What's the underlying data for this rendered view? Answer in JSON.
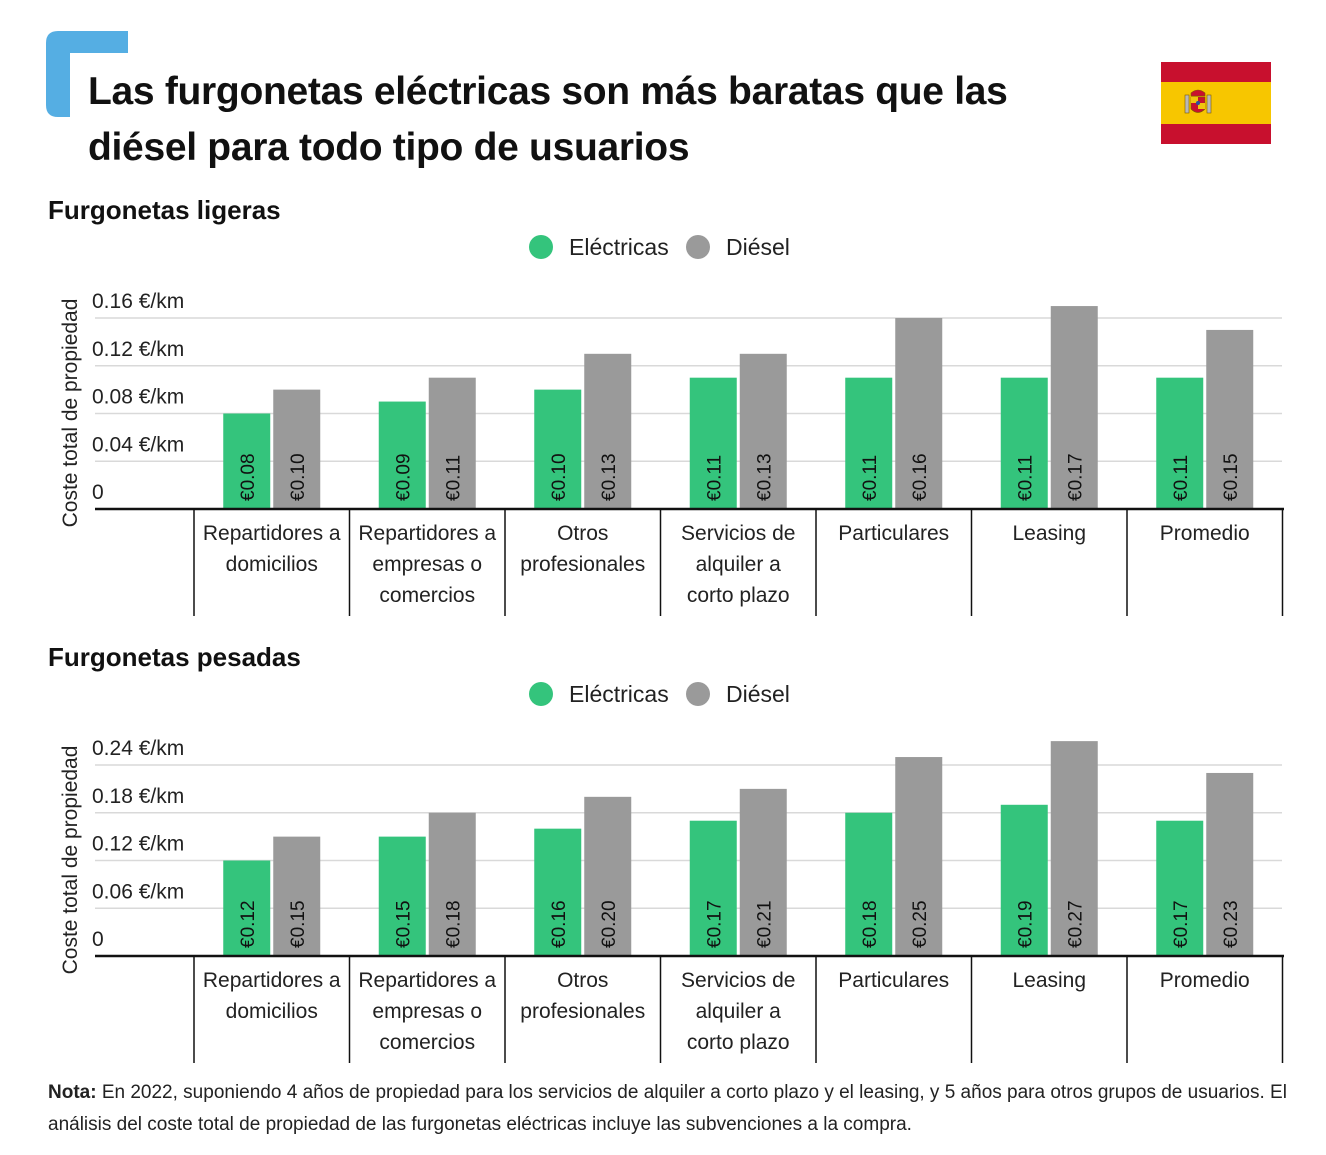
{
  "title": "Las furgonetas eléctricas son más baratas que las diésel para todo tipo de usuarios",
  "flag_icon": "spain-flag-icon",
  "colors": {
    "accent": "#55aee3",
    "electric": "#34c47c",
    "diesel": "#9a9a9a",
    "grid": "#d9d9d9",
    "axis": "#111111"
  },
  "chart_data": [
    {
      "type": "bar",
      "title": "Furgonetas ligeras",
      "ylabel": "Coste total de propiedad",
      "xlabel": "",
      "categories": [
        "Repartidores a domicilios",
        "Repartidores a empresas o comercios",
        "Otros profesionales",
        "Servicios de alquiler a corto plazo",
        "Particulares",
        "Leasing",
        "Promedio"
      ],
      "category_lines": [
        [
          "Repartidores a",
          "domicilios"
        ],
        [
          "Repartidores a",
          "empresas o",
          "comercios"
        ],
        [
          "Otros",
          "profesionales"
        ],
        [
          "Servicios de",
          "alquiler a",
          "corto plazo"
        ],
        [
          "Particulares"
        ],
        [
          "Leasing"
        ],
        [
          "Promedio"
        ]
      ],
      "series": [
        {
          "name": "Eléctricas",
          "values": [
            0.08,
            0.09,
            0.1,
            0.11,
            0.11,
            0.11,
            0.11
          ],
          "labels": [
            "€0.08",
            "€0.09",
            "€0.10",
            "€0.11",
            "€0.11",
            "€0.11",
            "€0.11"
          ]
        },
        {
          "name": "Diésel",
          "values": [
            0.1,
            0.11,
            0.13,
            0.13,
            0.16,
            0.17,
            0.15
          ],
          "labels": [
            "€0.10",
            "€0.11",
            "€0.13",
            "€0.13",
            "€0.16",
            "€0.17",
            "€0.15"
          ]
        }
      ],
      "yticks": [
        0,
        0.04,
        0.08,
        0.12,
        0.16
      ],
      "ytick_labels": [
        "0",
        "0.04 €/km",
        "0.08 €/km",
        "0.12 €/km",
        "0.16 €/km"
      ],
      "ylim": [
        0,
        0.16
      ],
      "grid": true,
      "legend": "top-center"
    },
    {
      "type": "bar",
      "title": "Furgonetas pesadas",
      "ylabel": "Coste total de propiedad",
      "xlabel": "",
      "categories": [
        "Repartidores a domicilios",
        "Repartidores a empresas o comercios",
        "Otros profesionales",
        "Servicios de alquiler a corto plazo",
        "Particulares",
        "Leasing",
        "Promedio"
      ],
      "category_lines": [
        [
          "Repartidores a",
          "domicilios"
        ],
        [
          "Repartidores a",
          "empresas o",
          "comercios"
        ],
        [
          "Otros",
          "profesionales"
        ],
        [
          "Servicios de",
          "alquiler a",
          "corto plazo"
        ],
        [
          "Particulares"
        ],
        [
          "Leasing"
        ],
        [
          "Promedio"
        ]
      ],
      "series": [
        {
          "name": "Eléctricas",
          "values": [
            0.12,
            0.15,
            0.16,
            0.17,
            0.18,
            0.19,
            0.17
          ],
          "labels": [
            "€0.12",
            "€0.15",
            "€0.16",
            "€0.17",
            "€0.18",
            "€0.19",
            "€0.17"
          ]
        },
        {
          "name": "Diésel",
          "values": [
            0.15,
            0.18,
            0.2,
            0.21,
            0.25,
            0.27,
            0.23
          ],
          "labels": [
            "€0.15",
            "€0.18",
            "€0.20",
            "€0.21",
            "€0.25",
            "€0.27",
            "€0.23"
          ]
        }
      ],
      "yticks": [
        0,
        0.06,
        0.12,
        0.18,
        0.24
      ],
      "ytick_labels": [
        "0",
        "0.06 €/km",
        "0.12 €/km",
        "0.18 €/km",
        "0.24 €/km"
      ],
      "ylim": [
        0,
        0.24
      ],
      "grid": true,
      "legend": "top-center"
    }
  ],
  "note": {
    "label": "Nota:",
    "text": " En 2022, suponiendo 4 años de propiedad para los servicios de alquiler a corto plazo y el leasing, y 5 años para otros grupos de usuarios. El análisis del coste total de propiedad de las furgonetas eléctricas incluye las subvenciones a la compra."
  }
}
